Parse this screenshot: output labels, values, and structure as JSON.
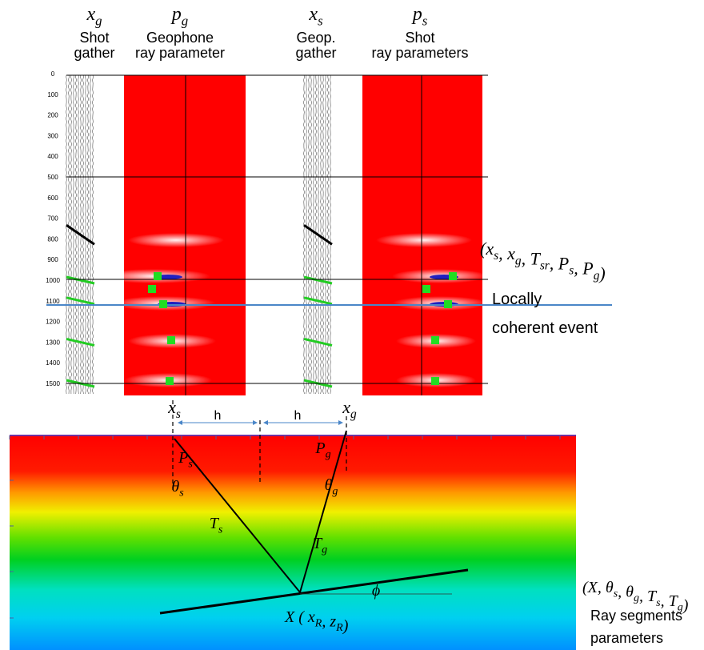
{
  "headers": [
    {
      "symbol": [
        {
          "text": "x",
          "sub": "g"
        }
      ],
      "lines": [
        "Shot",
        "gather"
      ]
    },
    {
      "symbol": [
        {
          "text": "p",
          "sub": "g"
        }
      ],
      "lines": [
        "Geophone",
        "ray parameter"
      ]
    },
    {
      "symbol": [
        {
          "text": "x",
          "sub": "s"
        }
      ],
      "lines": [
        "Geop.",
        "gather"
      ]
    },
    {
      "symbol": [
        {
          "text": "p",
          "sub": "s"
        }
      ],
      "lines": [
        "Shot",
        "ray parameters"
      ]
    }
  ],
  "time_axis": [
    0,
    100,
    200,
    300,
    400,
    500,
    600,
    700,
    800,
    900,
    1000,
    1100,
    1200,
    1300,
    1400,
    1500
  ],
  "pick_annotation": [
    {
      "text": "(x",
      "sub": "s"
    },
    {
      "text": ", x",
      "sub": "g"
    },
    {
      "text": ", T",
      "sub": "sr"
    },
    {
      "text": ", P",
      "sub": "s"
    },
    {
      "text": ", P",
      "sub": "g"
    },
    {
      "text": ")"
    }
  ],
  "event_label": [
    "Locally",
    "coherent event"
  ],
  "model": {
    "labels": [
      [
        {
          "text": "x",
          "sub": "s"
        }
      ],
      [
        {
          "text": "h"
        }
      ],
      [
        {
          "text": "h"
        }
      ],
      [
        {
          "text": "x",
          "sub": "g"
        }
      ],
      [
        {
          "text": "P",
          "sub": "s"
        }
      ],
      [
        {
          "text": "θ",
          "sub": "s"
        }
      ],
      [
        {
          "text": "T",
          "sub": "s"
        }
      ],
      [
        {
          "text": "P",
          "sub": "g"
        }
      ],
      [
        {
          "text": "θ",
          "sub": "g"
        }
      ],
      [
        {
          "text": "T",
          "sub": "g"
        }
      ],
      [
        {
          "text": "ϕ"
        }
      ]
    ],
    "reflection_point": [
      {
        "text": "X ( x",
        "sub": "R"
      },
      {
        "text": ", z",
        "sub": "R"
      },
      {
        "text": ")"
      }
    ],
    "parameters": [
      {
        "text": "(X, θ",
        "sub": "s"
      },
      {
        "text": ", θ",
        "sub": "g"
      },
      {
        "text": ", T",
        "sub": "s"
      },
      {
        "text": ", T",
        "sub": "g"
      },
      {
        "text": ")"
      }
    ],
    "parameters_caption": [
      "Ray segments",
      "parameters"
    ]
  }
}
